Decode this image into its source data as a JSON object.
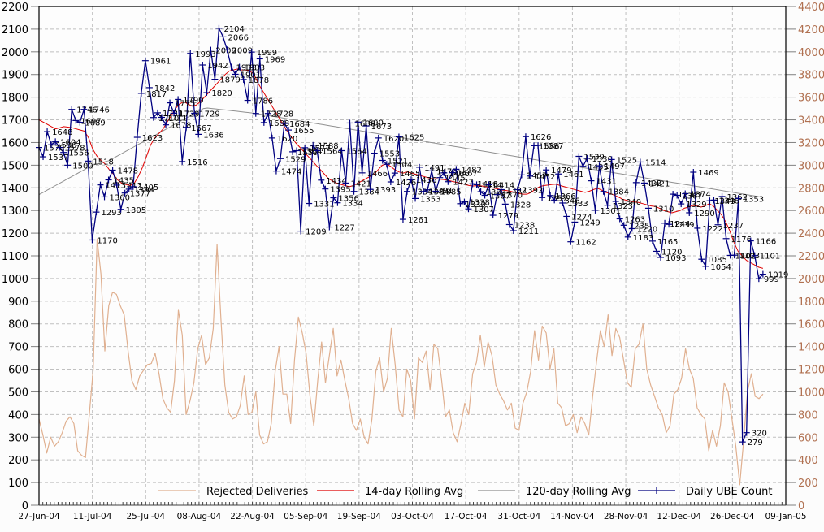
{
  "chart_data": {
    "type": "line",
    "title": "",
    "xlabel": "",
    "ylabel": "",
    "y2label": "",
    "ylim": [
      0,
      2200
    ],
    "y2lim": [
      0,
      4400
    ],
    "grid": true,
    "legend_position": "bottom-inside",
    "x_tick_labels": [
      "27-Jun-04",
      "11-Jul-04",
      "25-Jul-04",
      "08-Aug-04",
      "22-Aug-04",
      "05-Sep-04",
      "19-Sep-04",
      "03-Oct-04",
      "17-Oct-04",
      "31-Oct-04",
      "14-Nov-04",
      "28-Nov-04",
      "12-Dec-04",
      "26-Dec-04",
      "09-Jan-05"
    ],
    "y_tick_labels": [
      "0",
      "100",
      "200",
      "300",
      "400",
      "500",
      "600",
      "700",
      "800",
      "900",
      "1000",
      "1100",
      "1200",
      "1300",
      "1400",
      "1500",
      "1600",
      "1700",
      "1800",
      "1900",
      "2000",
      "2100",
      "2200"
    ],
    "y2_tick_labels": [
      "0",
      "200",
      "400",
      "600",
      "800",
      "1000",
      "1200",
      "1400",
      "1600",
      "1800",
      "2000",
      "2200",
      "2400",
      "2600",
      "2800",
      "3000",
      "3200",
      "3400",
      "3600",
      "3800",
      "4000",
      "4200",
      "4400"
    ],
    "legend": [
      {
        "name": "Rejected Deliveries",
        "color": "#e0b090",
        "marker": false
      },
      {
        "name": "14-day Rolling Avg",
        "color": "#e00000",
        "marker": false
      },
      {
        "name": "120-day Rolling Avg",
        "color": "#909090",
        "marker": false
      },
      {
        "name": "Daily UBE Count",
        "color": "#000080",
        "marker": true
      }
    ],
    "series": [
      {
        "name": "Daily UBE Count",
        "axis": "left",
        "start_day": 0,
        "values": [
          1578,
          1537,
          1648,
          1590,
          1604,
          1578,
          1556,
          1500,
          1746,
          1697,
          1689,
          1746,
          1518,
          1170,
          1293,
          1413,
          1360,
          1435,
          1478,
          1412,
          1305,
          1377,
          1394,
          1405,
          1623,
          1817,
          1961,
          1842,
          1710,
          1731,
          1711,
          1678,
          1775,
          1729,
          1790,
          1516,
          1667,
          1993,
          1729,
          1636,
          1942,
          1820,
          2008,
          1879,
          2104,
          2066,
          2009,
          1933,
          1901,
          1933,
          1878,
          1786,
          1999,
          1728,
          1969,
          1688,
          1728,
          1620,
          1474,
          1529,
          1684,
          1655,
          1559,
          1564,
          1209,
          1577,
          1331,
          1588,
          1564,
          1434,
          1395,
          1227,
          1356,
          1334,
          1564,
          1421,
          1686,
          1384,
          1690,
          1466,
          1673,
          1393,
          1553,
          1620,
          1521,
          1504,
          1426,
          1465,
          1625,
          1261,
          1384,
          1436,
          1353,
          1491,
          1384,
          1391,
          1475,
          1385,
          1445,
          1466,
          1427,
          1467,
          1482,
          1330,
          1338,
          1307,
          1418,
          1414,
          1383,
          1367,
          1414,
          1279,
          1370,
          1392,
          1328,
          1238,
          1211,
          1392,
          1457,
          1626,
          1452,
          1586,
          1587,
          1357,
          1479,
          1366,
          1346,
          1461,
          1333,
          1274,
          1162,
          1249,
          1539,
          1495,
          1530,
          1431,
          1301,
          1497,
          1384,
          1323,
          1525,
          1340,
          1263,
          1235,
          1183,
          1220,
          1423,
          1514,
          1421,
          1310,
          1165,
          1120,
          1093,
          1244,
          1239,
          1372,
          1367,
          1329,
          1374,
          1290,
          1469,
          1222,
          1085,
          1054,
          1343,
          1346,
          1237,
          1362,
          1176,
          1102,
          1103,
          1353,
          279,
          320,
          1166,
          1101,
          999,
          1019
        ],
        "labeled_points": [
          1746,
          1746,
          1697,
          1689,
          1648,
          1604,
          1590,
          1578,
          1556,
          1537,
          1518,
          1500,
          1478,
          1435,
          1413,
          1394,
          1405,
          1377,
          1360,
          1305,
          1293,
          1170,
          1961,
          1842,
          1817,
          1623,
          1993,
          2104,
          2066,
          2008,
          1999,
          1969,
          1942,
          1933,
          1901,
          1879,
          1820,
          1786,
          1728,
          1688,
          1667,
          1636,
          1516,
          1684,
          1655,
          1620,
          1564,
          1559,
          1529,
          1474,
          1588,
          1434,
          1395,
          1331,
          1209,
          1227,
          1334,
          1690,
          1673,
          1620,
          1625,
          1553,
          1521,
          1466,
          1393,
          1426,
          1436,
          1353,
          1261,
          1482,
          1427,
          1414,
          1385,
          1307,
          1279,
          1238,
          1211,
          1392,
          1328,
          1626,
          1587,
          1586,
          1479,
          1461,
          1366,
          1333,
          1274,
          1249,
          1162,
          1539,
          1530,
          1525,
          1514,
          1497,
          1495,
          1431,
          1423,
          1421,
          1384,
          1340,
          1310,
          1301,
          1263,
          1165,
          1120,
          1093,
          1372,
          1367,
          1469,
          1343,
          1362,
          1346,
          1353,
          1290,
          1244,
          1239,
          1237,
          1222,
          1176,
          1166,
          1103,
          1101,
          1085,
          1054,
          1019,
          999,
          320,
          279
        ]
      },
      {
        "name": "14-day Rolling Avg",
        "axis": "left",
        "start_day": 0,
        "values": [
          1700,
          1690,
          1680,
          1670,
          1660,
          1665,
          1670,
          1668,
          1665,
          1660,
          1655,
          1650,
          1620,
          1570,
          1540,
          1520,
          1505,
          1480,
          1460,
          1435,
          1420,
          1415,
          1410,
          1420,
          1450,
          1490,
          1540,
          1590,
          1620,
          1640,
          1660,
          1690,
          1720,
          1750,
          1770,
          1780,
          1770,
          1760,
          1765,
          1780,
          1800,
          1820,
          1840,
          1860,
          1880,
          1900,
          1915,
          1920,
          1925,
          1920,
          1920,
          1915,
          1900,
          1860,
          1830,
          1800,
          1770,
          1740,
          1710,
          1680,
          1650,
          1625,
          1600,
          1580,
          1560,
          1540,
          1520,
          1500,
          1480,
          1460,
          1440,
          1430,
          1420,
          1415,
          1410,
          1405,
          1410,
          1420,
          1430,
          1440,
          1450,
          1460,
          1480,
          1500,
          1505,
          1495,
          1480,
          1470,
          1465,
          1470,
          1465,
          1460,
          1455,
          1450,
          1445,
          1440,
          1440,
          1438,
          1436,
          1432,
          1428,
          1424,
          1420,
          1415,
          1410,
          1408,
          1410,
          1408,
          1405,
          1400,
          1398,
          1395,
          1390,
          1388,
          1385,
          1380,
          1375,
          1372,
          1372,
          1380,
          1395,
          1405,
          1410,
          1412,
          1415,
          1416,
          1410,
          1405,
          1400,
          1395,
          1390,
          1385,
          1380,
          1385,
          1392,
          1398,
          1390,
          1380,
          1375,
          1368,
          1360,
          1350,
          1345,
          1340,
          1338,
          1335,
          1330,
          1325,
          1320,
          1318,
          1310,
          1300,
          1295,
          1290,
          1295,
          1300,
          1310,
          1315,
          1322,
          1320,
          1315,
          1320,
          1330,
          1320,
          1300,
          1280,
          1250,
          1210,
          1160,
          1120,
          1100,
          1080,
          1070,
          1060,
          1050,
          1045
        ],
        "labeled_points": []
      },
      {
        "name": "120-day Rolling Avg",
        "axis": "left",
        "start_day": 0,
        "values": [
          1370,
          1380,
          1390,
          1400,
          1410,
          1420,
          1430,
          1440,
          1450,
          1460,
          1470,
          1480,
          1490,
          1500,
          1505,
          1510,
          1515,
          1520,
          1530,
          1540,
          1550,
          1560,
          1570,
          1580,
          1590,
          1600,
          1610,
          1620,
          1630,
          1640,
          1650,
          1660,
          1670,
          1680,
          1690,
          1700,
          1710,
          1720,
          1730,
          1740,
          1750,
          1752,
          1750,
          1748,
          1746,
          1744,
          1742,
          1740,
          1738,
          1736,
          1734,
          1732,
          1730,
          1727,
          1724,
          1721,
          1718,
          1715,
          1712,
          1709,
          1706,
          1703,
          1700,
          1697,
          1694,
          1691,
          1688,
          1685,
          1682,
          1679,
          1676,
          1673,
          1670,
          1667,
          1664,
          1661,
          1658,
          1655,
          1652,
          1649,
          1646,
          1643,
          1640,
          1637,
          1634,
          1631,
          1628,
          1625,
          1622,
          1619,
          1616,
          1613,
          1610,
          1607,
          1604,
          1601,
          1598,
          1595,
          1592,
          1589,
          1586,
          1583,
          1580,
          1577,
          1574,
          1571,
          1568,
          1565,
          1562,
          1559,
          1556,
          1553,
          1550,
          1547,
          1544,
          1541,
          1538,
          1535,
          1532,
          1529,
          1526,
          1523,
          1520,
          1517,
          1514,
          1511,
          1508,
          1505,
          1502,
          1499,
          1496,
          1493,
          1490,
          1487,
          1484,
          1481,
          1478,
          1475,
          1472,
          1469,
          1466,
          1463,
          1460,
          1457,
          1454,
          1451,
          1448,
          1445,
          1442,
          1439,
          1436,
          1433,
          1430,
          1427,
          1424,
          1421,
          1418,
          1415,
          1412,
          1409,
          1406,
          1403,
          1400,
          1397,
          1394,
          1391,
          1388,
          1385,
          1382,
          1379,
          1376,
          1373,
          1370,
          1367,
          1364,
          1361,
          1358
        ],
        "labeled_points": []
      },
      {
        "name": "Rejected Deliveries",
        "axis": "right",
        "start_day": 0,
        "values": [
          760,
          620,
          460,
          600,
          520,
          560,
          640,
          740,
          780,
          720,
          480,
          440,
          420,
          800,
          1200,
          2350,
          2040,
          1360,
          1760,
          1880,
          1860,
          1760,
          1680,
          1360,
          1100,
          1020,
          1140,
          1190,
          1240,
          1250,
          1340,
          1160,
          940,
          860,
          820,
          1100,
          1720,
          1500,
          800,
          920,
          1080,
          1380,
          1500,
          1240,
          1300,
          1560,
          2300,
          1640,
          1060,
          820,
          760,
          780,
          880,
          1140,
          800,
          820,
          1000,
          620,
          540,
          560,
          720,
          1180,
          1400,
          980,
          980,
          720,
          1280,
          1660,
          1520,
          1340,
          960,
          700,
          1100,
          1440,
          1080,
          1320,
          1560,
          1140,
          1280,
          1100,
          940,
          720,
          660,
          760,
          600,
          540,
          760,
          1180,
          1300,
          1000,
          1120,
          1560,
          1240,
          840,
          780,
          1200,
          1100,
          760,
          1300,
          1260,
          1360,
          1020,
          1420,
          1380,
          1100,
          780,
          840,
          640,
          560,
          720,
          900,
          800,
          1160,
          1260,
          1500,
          1220,
          1440,
          1320,
          1060,
          980,
          920,
          840,
          900,
          680,
          660,
          900,
          1000,
          1180,
          1540,
          1280,
          1580,
          1520,
          1200,
          1380,
          900,
          860,
          700,
          720,
          800,
          640,
          780,
          720,
          620,
          960,
          1260,
          1540,
          1400,
          1680,
          1320,
          1560,
          1480,
          1280,
          1080,
          1040,
          1380,
          1420,
          1600,
          1200,
          1060,
          960,
          860,
          800,
          640,
          700,
          980,
          1020,
          1120,
          1380,
          1200,
          1120,
          860,
          800,
          760,
          480,
          660,
          520,
          700,
          1080,
          1000,
          760,
          520,
          180,
          560,
          1000,
          1160,
          960,
          940,
          980
        ]
      }
    ]
  }
}
